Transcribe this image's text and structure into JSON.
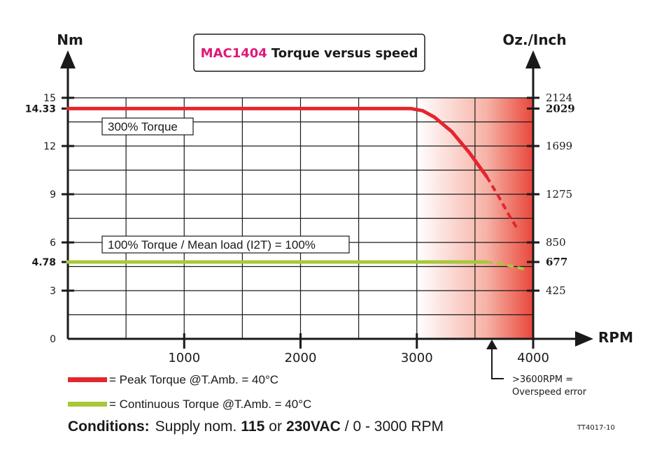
{
  "chart_data": {
    "type": "line",
    "title_model": "MAC1404",
    "title_rest": "Torque versus speed",
    "title_model_color": "#e0187a",
    "xlabel": "RPM",
    "ylabel_left": "Nm",
    "ylabel_right": "Oz./Inch",
    "xlim": [
      0,
      4000
    ],
    "ylim": [
      0,
      15
    ],
    "grid": true,
    "x_ticks": [
      "1000",
      "2000",
      "3000",
      "4000"
    ],
    "x_tick_values": [
      1000,
      2000,
      3000,
      4000
    ],
    "y_ticks_left": [
      {
        "value": 0,
        "label": "0",
        "bold": false
      },
      {
        "value": 3,
        "label": "3",
        "bold": false
      },
      {
        "value": 4.78,
        "label": "4.78",
        "bold": true
      },
      {
        "value": 6,
        "label": "6",
        "bold": false
      },
      {
        "value": 9,
        "label": "9",
        "bold": false
      },
      {
        "value": 12,
        "label": "12",
        "bold": false
      },
      {
        "value": 14.33,
        "label": "14.33",
        "bold": true
      },
      {
        "value": 15,
        "label": "15",
        "bold": false
      }
    ],
    "y_ticks_right": [
      {
        "value": 3,
        "label": "425",
        "bold": false
      },
      {
        "value": 4.78,
        "label": "677",
        "bold": true
      },
      {
        "value": 6,
        "label": "850",
        "bold": false
      },
      {
        "value": 9,
        "label": "1275",
        "bold": false
      },
      {
        "value": 12,
        "label": "1699",
        "bold": false
      },
      {
        "value": 14.33,
        "label": "2029",
        "bold": true
      },
      {
        "value": 15,
        "label": "2124",
        "bold": false
      }
    ],
    "overspeed_region": [
      3000,
      4000
    ],
    "series": [
      {
        "name": "Peak Torque @T.Amb. = 40°C",
        "color": "#e3262e",
        "solid": [
          [
            0,
            14.33
          ],
          [
            2950,
            14.33
          ],
          [
            3050,
            14.2
          ],
          [
            3150,
            13.8
          ],
          [
            3300,
            12.9
          ],
          [
            3450,
            11.6
          ],
          [
            3600,
            10.1
          ]
        ],
        "dashed": [
          [
            3600,
            10.1
          ],
          [
            3700,
            8.9
          ],
          [
            3800,
            7.6
          ],
          [
            3860,
            6.9
          ]
        ]
      },
      {
        "name": "Continuous Torque @T.Amb. = 40°C",
        "color": "#a8c83a",
        "solid": [
          [
            0,
            4.78
          ],
          [
            3600,
            4.78
          ]
        ],
        "dashed": [
          [
            3600,
            4.78
          ],
          [
            3700,
            4.7
          ],
          [
            3800,
            4.55
          ],
          [
            3950,
            4.3
          ]
        ]
      }
    ],
    "annotations": {
      "peak_box": "300% Torque",
      "cont_box": "100% Torque / Mean load (I2T) = 100%",
      "overspeed_line1": ">3600RPM =",
      "overspeed_line2": "Overspeed error",
      "overspeed_rpm": 3600
    }
  },
  "legend": {
    "peak": "= Peak Torque @T.Amb. = 40°C",
    "continuous": "= Continuous Torque @T.Amb. = 40°C"
  },
  "conditions": {
    "label": "Conditions:",
    "part1": "Supply nom.",
    "v1": "115",
    "part2": "or",
    "v2": "230VAC",
    "part3": "/ 0 - 3000 RPM"
  },
  "doc_code": "TT4017-10"
}
